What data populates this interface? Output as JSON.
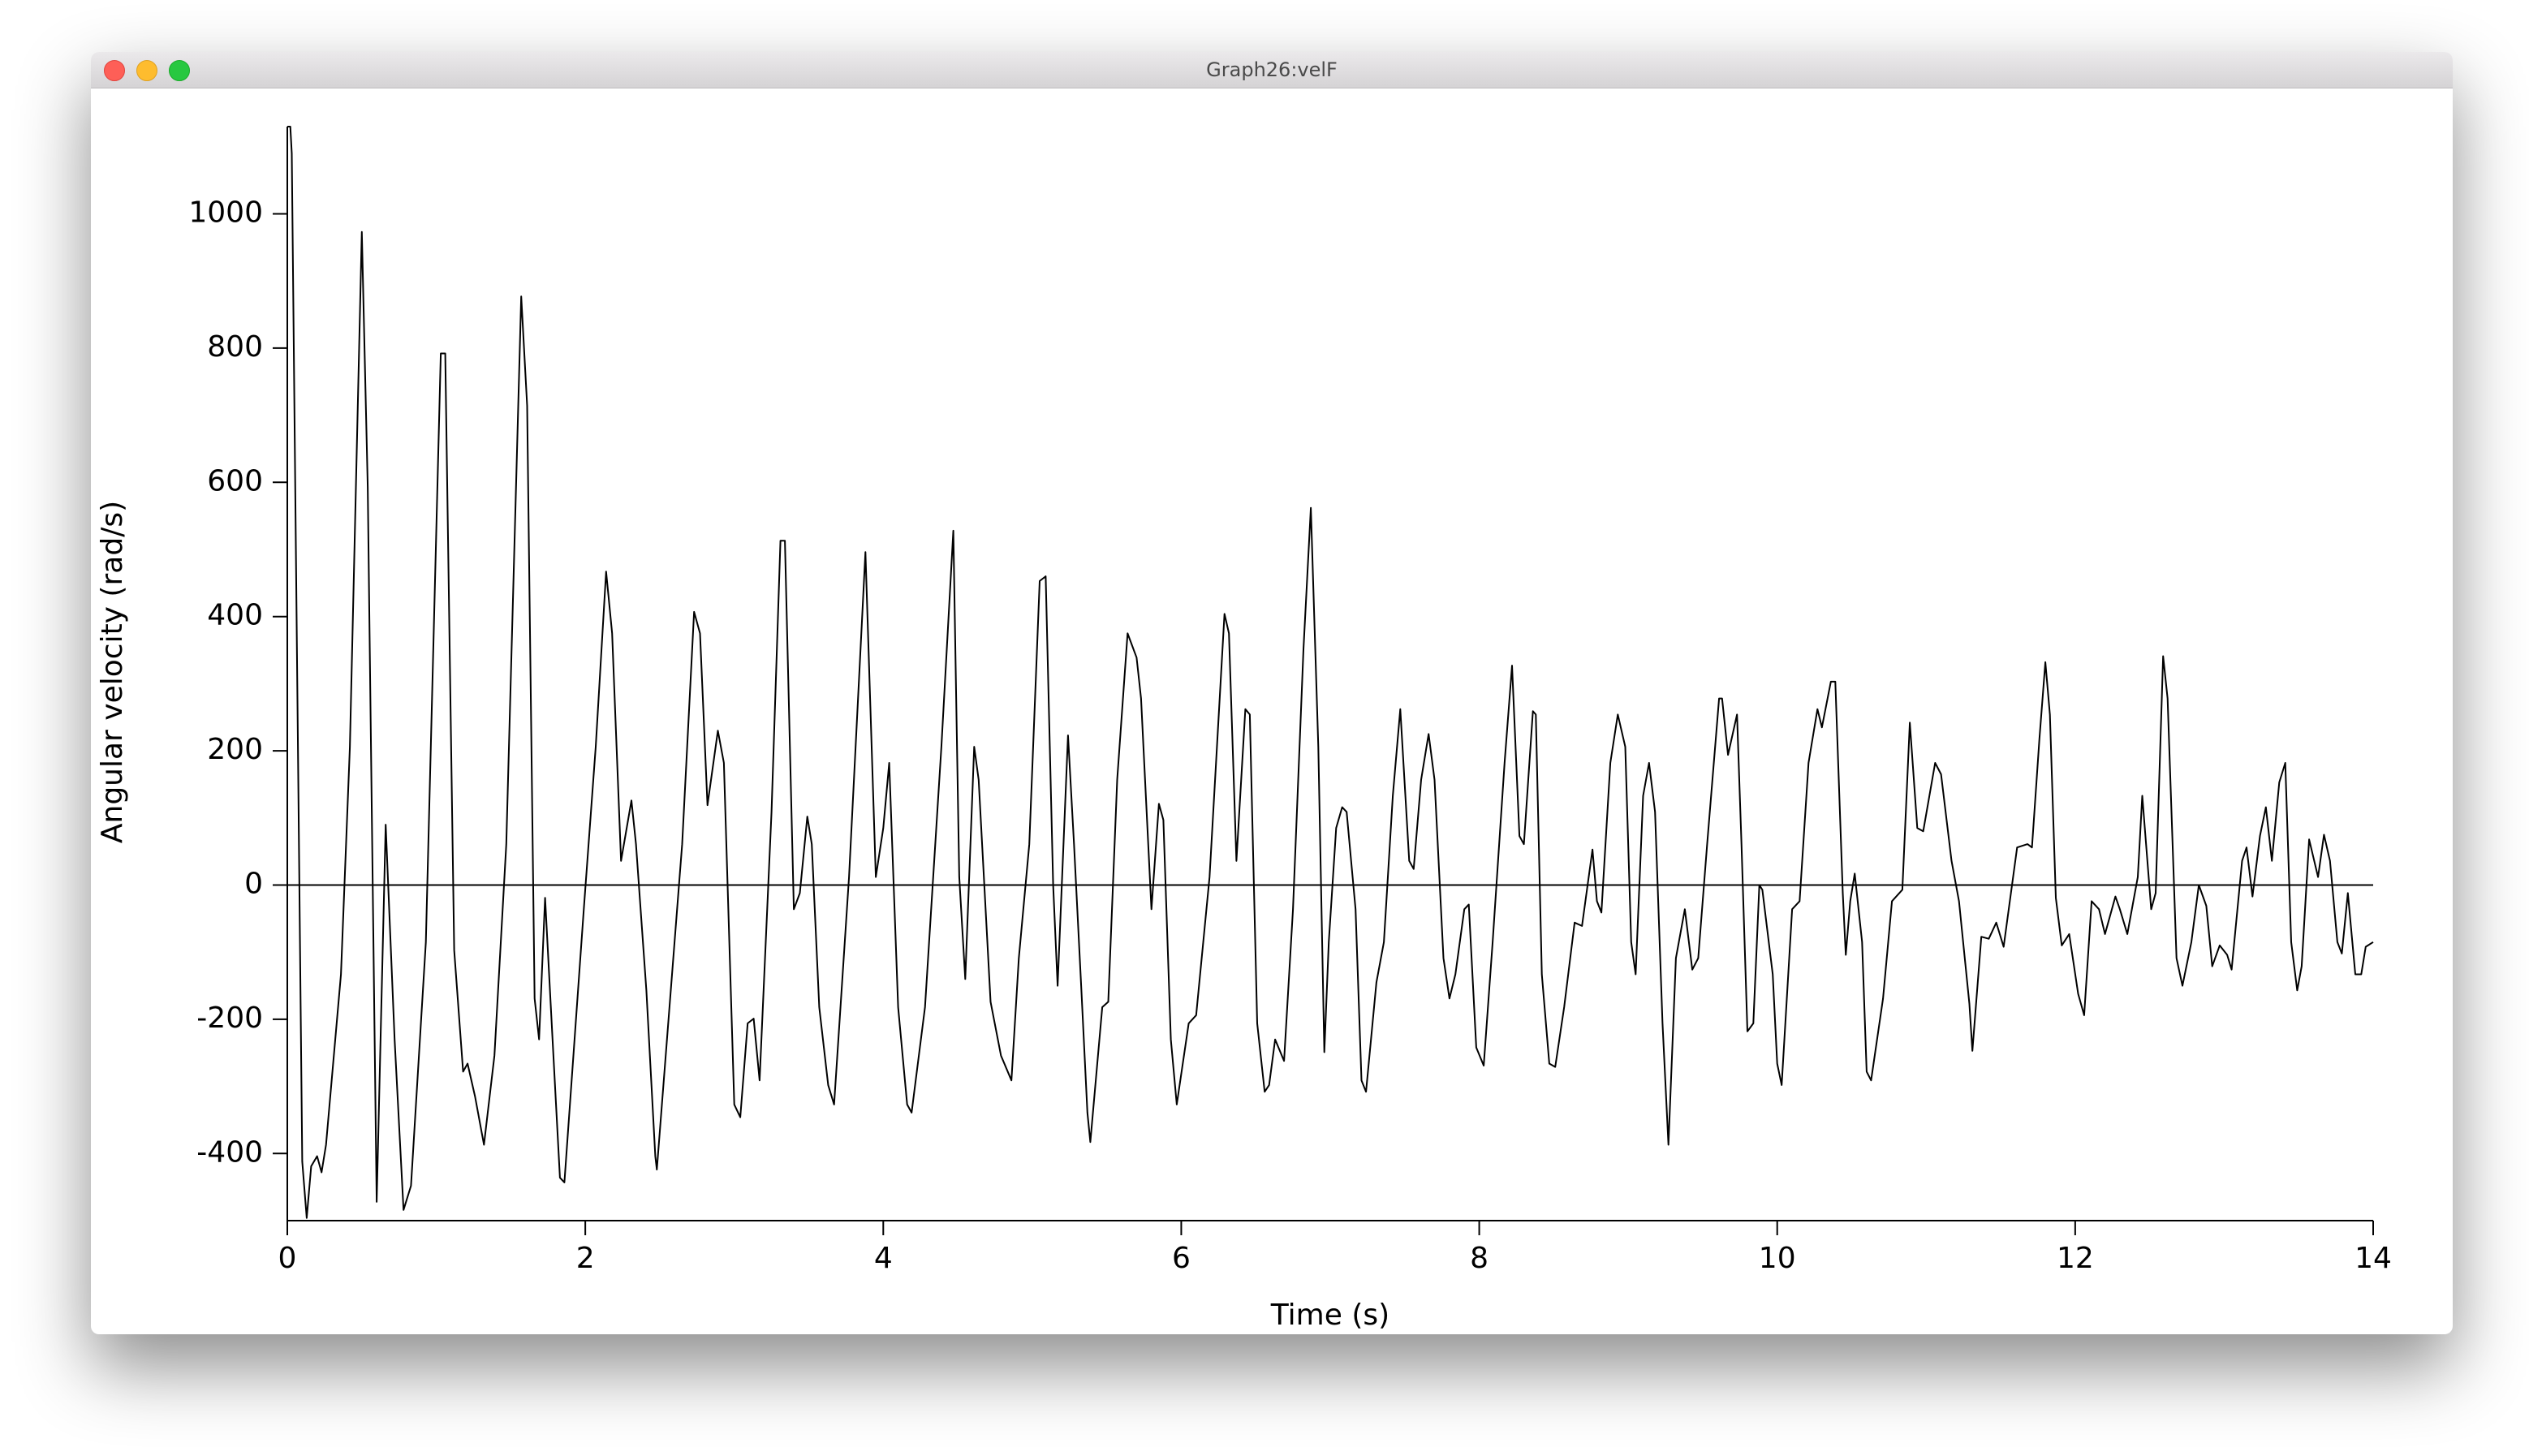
{
  "window": {
    "title": "Graph26:velF"
  },
  "chart_data": {
    "type": "line",
    "x_label": "Time (s)",
    "y_label": "Angular velocity (rad/s)",
    "color": "#000000",
    "zero_line": true,
    "xlim": [
      0,
      14
    ],
    "ylim": [
      -500,
      1130
    ],
    "xticks": [
      0,
      2,
      4,
      6,
      8,
      10,
      12,
      14
    ],
    "yticks": [
      -400,
      -200,
      0,
      200,
      400,
      600,
      800,
      1000
    ],
    "x": [
      0,
      0.02,
      0.03,
      0.1,
      0.13,
      0.16,
      0.2,
      0.23,
      0.26,
      0.36,
      0.42,
      0.5,
      0.54,
      0.6,
      0.66,
      0.72,
      0.78,
      0.83,
      0.93,
      1.03,
      1.06,
      1.12,
      1.18,
      1.21,
      1.26,
      1.32,
      1.39,
      1.47,
      1.57,
      1.61,
      1.66,
      1.69,
      1.73,
      1.78,
      1.83,
      1.86,
      1.99,
      2.07,
      2.14,
      2.18,
      2.24,
      2.31,
      2.34,
      2.41,
      2.47,
      2.48,
      2.65,
      2.73,
      2.77,
      2.82,
      2.89,
      2.93,
      3.0,
      3.04,
      3.09,
      3.13,
      3.17,
      3.25,
      3.31,
      3.34,
      3.4,
      3.44,
      3.49,
      3.52,
      3.57,
      3.63,
      3.67,
      3.77,
      3.88,
      3.95,
      4.0,
      4.04,
      4.1,
      4.16,
      4.19,
      4.28,
      4.39,
      4.47,
      4.51,
      4.55,
      4.61,
      4.64,
      4.72,
      4.79,
      4.86,
      4.91,
      4.98,
      5.05,
      5.09,
      5.14,
      5.17,
      5.24,
      5.28,
      5.33,
      5.37,
      5.39,
      5.47,
      5.51,
      5.57,
      5.64,
      5.7,
      5.73,
      5.8,
      5.85,
      5.88,
      5.93,
      5.97,
      6.05,
      6.1,
      6.19,
      6.29,
      6.32,
      6.37,
      6.43,
      6.46,
      6.51,
      6.56,
      6.59,
      6.63,
      6.69,
      6.75,
      6.82,
      6.87,
      6.92,
      6.96,
      6.99,
      7.04,
      7.08,
      7.11,
      7.17,
      7.21,
      7.24,
      7.31,
      7.36,
      7.42,
      7.47,
      7.53,
      7.56,
      7.61,
      7.66,
      7.7,
      7.76,
      7.8,
      7.84,
      7.9,
      7.93,
      7.98,
      8.03,
      8.09,
      8.17,
      8.22,
      8.27,
      8.3,
      8.36,
      8.38,
      8.42,
      8.47,
      8.51,
      8.57,
      8.64,
      8.69,
      8.76,
      8.79,
      8.82,
      8.88,
      8.93,
      8.98,
      9.02,
      9.05,
      9.1,
      9.14,
      9.18,
      9.23,
      9.27,
      9.32,
      9.38,
      9.43,
      9.47,
      9.53,
      9.61,
      9.63,
      9.67,
      9.73,
      9.76,
      9.8,
      9.84,
      9.88,
      9.9,
      9.97,
      10.0,
      10.03,
      10.1,
      10.15,
      10.21,
      10.27,
      10.3,
      10.36,
      10.39,
      10.44,
      10.46,
      10.49,
      10.52,
      10.57,
      10.6,
      10.63,
      10.71,
      10.77,
      10.84,
      10.89,
      10.94,
      10.98,
      11.06,
      11.1,
      11.17,
      11.22,
      11.29,
      11.31,
      11.37,
      11.42,
      11.47,
      11.52,
      11.61,
      11.68,
      11.71,
      11.76,
      11.8,
      11.83,
      11.87,
      11.91,
      11.96,
      12.02,
      12.06,
      12.11,
      12.16,
      12.2,
      12.27,
      12.3,
      12.35,
      12.42,
      12.45,
      12.51,
      12.54,
      12.59,
      12.62,
      12.68,
      12.72,
      12.78,
      12.83,
      12.88,
      12.92,
      12.97,
      13.02,
      13.05,
      13.12,
      13.15,
      13.19,
      13.24,
      13.28,
      13.32,
      13.37,
      13.41,
      13.45,
      13.49,
      13.52,
      13.57,
      13.63,
      13.67,
      13.71,
      13.76,
      13.79,
      13.83,
      13.88,
      13.92,
      13.95,
      14
    ],
    "values": [
      1130,
      1130,
      1090,
      -412,
      -496,
      -419,
      -404,
      -428,
      -387,
      -133,
      206,
      973,
      593,
      -472,
      90,
      -230,
      -484,
      -448,
      -85,
      792,
      792,
      -97,
      -278,
      -266,
      -315,
      -387,
      -254,
      61,
      877,
      714,
      -169,
      -230,
      -19,
      -230,
      -436,
      -443,
      -36,
      206,
      467,
      375,
      36,
      126,
      61,
      -157,
      -404,
      -424,
      61,
      407,
      375,
      119,
      230,
      182,
      -327,
      -346,
      -206,
      -199,
      -291,
      109,
      513,
      513,
      -36,
      -12,
      102,
      61,
      -182,
      -298,
      -327,
      12,
      496,
      12,
      85,
      182,
      -182,
      -327,
      -339,
      -182,
      206,
      528,
      12,
      -140,
      206,
      157,
      -174,
      -254,
      -291,
      -109,
      61,
      453,
      460,
      0,
      -150,
      223,
      61,
      -157,
      -339,
      -383,
      -182,
      -174,
      157,
      375,
      339,
      278,
      -36,
      121,
      97,
      -230,
      -327,
      -206,
      -194,
      12,
      404,
      375,
      36,
      262,
      254,
      -206,
      -308,
      -298,
      -230,
      -262,
      -36,
      351,
      562,
      206,
      -249,
      -85,
      85,
      116,
      109,
      -36,
      -291,
      -308,
      -145,
      -85,
      133,
      262,
      36,
      24,
      157,
      225,
      157,
      -109,
      -169,
      -133,
      -36,
      -29,
      -242,
      -269,
      -85,
      182,
      327,
      73,
      61,
      259,
      254,
      -133,
      -266,
      -271,
      -182,
      -56,
      -61,
      53,
      -24,
      -41,
      182,
      254,
      206,
      -85,
      -133,
      133,
      182,
      109,
      -206,
      -387,
      -109,
      -36,
      -126,
      -109,
      61,
      278,
      278,
      194,
      254,
      61,
      -218,
      -206,
      0,
      -7,
      -133,
      -266,
      -298,
      -36,
      -24,
      182,
      262,
      235,
      303,
      303,
      -12,
      -104,
      -24,
      17,
      -85,
      -278,
      -291,
      -169,
      -24,
      -7,
      242,
      85,
      80,
      182,
      165,
      36,
      -24,
      -177,
      -247,
      -77,
      -80,
      -56,
      -92,
      56,
      61,
      56,
      218,
      332,
      254,
      -19,
      -90,
      -73,
      -162,
      -194,
      -24,
      -36,
      -73,
      -17,
      -36,
      -73,
      12,
      133,
      -36,
      -12,
      341,
      278,
      -109,
      -150,
      -85,
      0,
      -31,
      -121,
      -90,
      -104,
      -126,
      36,
      56,
      -17,
      73,
      116,
      36,
      153,
      182,
      -85,
      -157,
      -121,
      68,
      12,
      75,
      36,
      -85,
      -102,
      -12,
      -133,
      -133,
      -92,
      -85
    ]
  }
}
